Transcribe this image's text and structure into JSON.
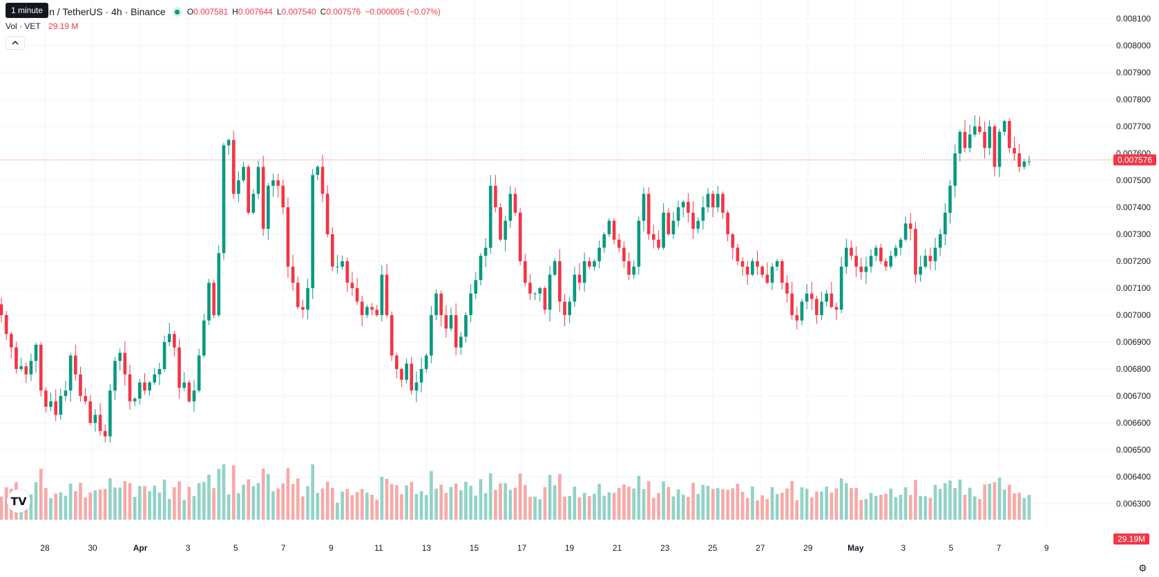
{
  "legend": {
    "symbol": "in / TetherUS · 4h · Binance",
    "open_key": "O",
    "open": "0.007581",
    "high_key": "H",
    "high": "0.007644",
    "low_key": "L",
    "low": "0.007540",
    "close_key": "C",
    "close": "0.007576",
    "change": "−0.000005 (−0.07%)",
    "vol_label": "Vol · VET",
    "vol_value": "29.19 M",
    "tooltip": "1 minute"
  },
  "icons": {
    "collapse": "chevron-up-icon",
    "logo": "tradingview-logo-icon",
    "settings": "gear-icon"
  },
  "colors": {
    "up": "#089981",
    "down": "#f23645",
    "vol_up": "#92d2c6",
    "vol_down": "#f7a9a7"
  },
  "chart_data": {
    "type": "candlestick",
    "title": "",
    "price_axis_ticks": [
      "0.008100",
      "0.008000",
      "0.007900",
      "0.007800",
      "0.007700",
      "0.007600",
      "0.007500",
      "0.007400",
      "0.007300",
      "0.007200",
      "0.007100",
      "0.007000",
      "0.006900",
      "0.006800",
      "0.006700",
      "0.006600",
      "0.006500",
      "0.006400",
      "0.006300"
    ],
    "time_axis_ticks": [
      "28",
      "30",
      "Apr",
      "3",
      "5",
      "7",
      "9",
      "11",
      "13",
      "15",
      "17",
      "19",
      "21",
      "23",
      "25",
      "27",
      "29",
      "May",
      "3",
      "5",
      "7",
      "9"
    ],
    "last_price_label": "0.007576",
    "volume_label": "29.19M",
    "ylim": [
      0.00626,
      0.00812
    ],
    "grid": true,
    "closes": [
      0.007,
      0.00693,
      0.00688,
      0.0068,
      0.00681,
      0.00678,
      0.00683,
      0.00689,
      0.00672,
      0.00666,
      0.00668,
      0.00663,
      0.0067,
      0.00672,
      0.00685,
      0.00678,
      0.0067,
      0.00668,
      0.0066,
      0.00663,
      0.00657,
      0.00655,
      0.00672,
      0.00683,
      0.00686,
      0.00678,
      0.00668,
      0.00669,
      0.00675,
      0.00672,
      0.00675,
      0.00678,
      0.0068,
      0.0069,
      0.00693,
      0.00688,
      0.00673,
      0.00675,
      0.00668,
      0.00672,
      0.00685,
      0.00698,
      0.00712,
      0.007,
      0.00723,
      0.00763,
      0.00765,
      0.00745,
      0.0075,
      0.00755,
      0.00738,
      0.00745,
      0.00755,
      0.00732,
      0.00748,
      0.0075,
      0.00748,
      0.0074,
      0.00718,
      0.00712,
      0.00703,
      0.00702,
      0.0071,
      0.00752,
      0.00755,
      0.00745,
      0.0073,
      0.00718,
      0.00718,
      0.0072,
      0.00712,
      0.0071,
      0.00705,
      0.007,
      0.00703,
      0.00702,
      0.007,
      0.00715,
      0.007,
      0.00685,
      0.0068,
      0.00676,
      0.00682,
      0.00672,
      0.00675,
      0.0068,
      0.00685,
      0.007,
      0.00708,
      0.007,
      0.00695,
      0.007,
      0.00688,
      0.00692,
      0.007,
      0.00708,
      0.00713,
      0.00722,
      0.00725,
      0.00748,
      0.0074,
      0.00728,
      0.00735,
      0.00745,
      0.00738,
      0.0072,
      0.00712,
      0.00708,
      0.00708,
      0.0071,
      0.00702,
      0.00715,
      0.0072,
      0.00705,
      0.007,
      0.00705,
      0.00715,
      0.00712,
      0.0072,
      0.00718,
      0.0072,
      0.00725,
      0.0073,
      0.00735,
      0.00728,
      0.00725,
      0.0072,
      0.00715,
      0.00718,
      0.00735,
      0.00745,
      0.0073,
      0.00728,
      0.00725,
      0.00738,
      0.0073,
      0.00735,
      0.0074,
      0.00742,
      0.00738,
      0.00732,
      0.00735,
      0.0074,
      0.00745,
      0.0074,
      0.00745,
      0.00738,
      0.0073,
      0.00725,
      0.0072,
      0.00718,
      0.00715,
      0.0072,
      0.00718,
      0.00715,
      0.00712,
      0.00718,
      0.0072,
      0.00712,
      0.00708,
      0.007,
      0.00698,
      0.00705,
      0.00708,
      0.00706,
      0.007,
      0.00705,
      0.00708,
      0.00703,
      0.00702,
      0.00718,
      0.00725,
      0.00722,
      0.00718,
      0.00716,
      0.00718,
      0.00722,
      0.00725,
      0.0072,
      0.00718,
      0.00722,
      0.00725,
      0.00728,
      0.00734,
      0.00732,
      0.00715,
      0.00718,
      0.00722,
      0.0072,
      0.00725,
      0.0073,
      0.00738,
      0.00748,
      0.0076,
      0.00768,
      0.00762,
      0.00767,
      0.0077,
      0.00768,
      0.00762,
      0.0077,
      0.00755,
      0.00768,
      0.00772,
      0.00762,
      0.0076,
      0.00755,
      0.00757,
      0.00757
    ],
    "volume_range": [
      0.3,
      1.0
    ]
  }
}
